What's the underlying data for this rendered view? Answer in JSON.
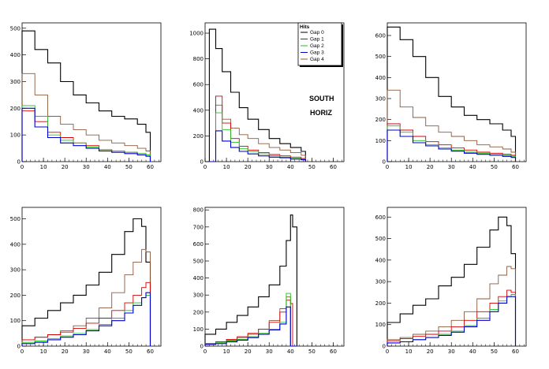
{
  "colors": {
    "Gap 0": "#000000",
    "Gap 1": "#d40000",
    "Gap 2": "#20c020",
    "Gap 3": "#0000cc",
    "Gap 4": "#8b5a3c"
  },
  "legend": {
    "title": "Hits",
    "entries": [
      "Gap 0",
      "Gap 1",
      "Gap 2",
      "Gap 3",
      "Gap 4"
    ]
  },
  "annotations": {
    "line1": "SOUTH",
    "line2": "HORIZ"
  },
  "chart_data": [
    {
      "type": "histogram",
      "xlim": [
        0,
        65
      ],
      "ylim": [
        0,
        520
      ],
      "xticks": [
        0,
        10,
        20,
        30,
        40,
        50,
        60
      ],
      "yticks": [
        0,
        100,
        200,
        300,
        400,
        500
      ],
      "series": [
        {
          "name": "Gap 0",
          "x": [
            0,
            6,
            12,
            18,
            24,
            30,
            36,
            42,
            48,
            54,
            58
          ],
          "y": [
            490,
            420,
            370,
            300,
            250,
            220,
            190,
            170,
            160,
            140,
            110
          ]
        },
        {
          "name": "Gap 4",
          "x": [
            0,
            6,
            12,
            18,
            24,
            30,
            36,
            42,
            48,
            54,
            58
          ],
          "y": [
            330,
            250,
            170,
            140,
            120,
            100,
            80,
            70,
            60,
            50,
            40
          ]
        },
        {
          "name": "Gap 1",
          "x": [
            0,
            6,
            12,
            18,
            24,
            30,
            36,
            42,
            48,
            54,
            58
          ],
          "y": [
            190,
            150,
            110,
            90,
            70,
            60,
            45,
            40,
            35,
            30,
            25
          ]
        },
        {
          "name": "Gap 2",
          "x": [
            0,
            6,
            12,
            18,
            24,
            30,
            36,
            42,
            48,
            54,
            58
          ],
          "y": [
            210,
            170,
            100,
            80,
            70,
            55,
            45,
            40,
            35,
            30,
            25
          ]
        },
        {
          "name": "Gap 3",
          "x": [
            0,
            6,
            12,
            18,
            24,
            30,
            36,
            42,
            48,
            54,
            58
          ],
          "y": [
            200,
            130,
            90,
            70,
            60,
            50,
            40,
            35,
            30,
            25,
            20
          ]
        }
      ]
    },
    {
      "type": "histogram",
      "xlim": [
        0,
        65
      ],
      "ylim": [
        0,
        1080
      ],
      "xticks": [
        0,
        10,
        20,
        30,
        40,
        50,
        60
      ],
      "yticks": [
        0,
        200,
        400,
        600,
        800,
        1000
      ],
      "series": [
        {
          "name": "Gap 0",
          "x": [
            2,
            5,
            8,
            12,
            16,
            20,
            25,
            30,
            35,
            40,
            45
          ],
          "y": [
            1030,
            880,
            700,
            540,
            420,
            330,
            250,
            180,
            140,
            110,
            80
          ]
        },
        {
          "name": "Gap 4",
          "x": [
            2,
            5,
            8,
            12,
            16,
            20,
            25,
            30,
            35,
            40,
            45
          ],
          "y": [
            0,
            440,
            330,
            260,
            210,
            180,
            140,
            110,
            90,
            70,
            50
          ]
        },
        {
          "name": "Gap 1",
          "x": [
            2,
            5,
            8,
            12,
            16,
            20,
            25,
            30,
            35,
            40,
            45
          ],
          "y": [
            0,
            510,
            300,
            180,
            120,
            90,
            70,
            55,
            45,
            35,
            25
          ]
        },
        {
          "name": "Gap 2",
          "x": [
            2,
            5,
            8,
            12,
            16,
            20,
            25,
            30,
            35,
            40,
            45
          ],
          "y": [
            0,
            380,
            250,
            150,
            100,
            80,
            60,
            45,
            35,
            25,
            20
          ]
        },
        {
          "name": "Gap 3",
          "x": [
            2,
            5,
            8,
            12,
            16,
            20,
            25,
            30,
            35,
            40,
            45
          ],
          "y": [
            0,
            240,
            160,
            110,
            80,
            60,
            45,
            35,
            30,
            20,
            15
          ]
        }
      ]
    },
    {
      "type": "histogram",
      "xlim": [
        0,
        65
      ],
      "ylim": [
        0,
        660
      ],
      "xticks": [
        0,
        10,
        20,
        30,
        40,
        50,
        60
      ],
      "yticks": [
        0,
        100,
        200,
        300,
        400,
        500,
        600
      ],
      "series": [
        {
          "name": "Gap 0",
          "x": [
            0,
            6,
            12,
            18,
            24,
            30,
            36,
            42,
            48,
            54,
            58
          ],
          "y": [
            640,
            580,
            500,
            400,
            310,
            260,
            220,
            200,
            180,
            150,
            120
          ]
        },
        {
          "name": "Gap 4",
          "x": [
            0,
            6,
            12,
            18,
            24,
            30,
            36,
            42,
            48,
            54,
            58
          ],
          "y": [
            340,
            260,
            210,
            170,
            140,
            120,
            100,
            80,
            70,
            60,
            45
          ]
        },
        {
          "name": "Gap 1",
          "x": [
            0,
            6,
            12,
            18,
            24,
            30,
            36,
            42,
            48,
            54,
            58
          ],
          "y": [
            180,
            150,
            120,
            95,
            80,
            65,
            55,
            45,
            40,
            35,
            30
          ]
        },
        {
          "name": "Gap 2",
          "x": [
            0,
            6,
            12,
            18,
            24,
            30,
            36,
            42,
            48,
            54,
            58
          ],
          "y": [
            170,
            140,
            100,
            80,
            65,
            55,
            45,
            40,
            35,
            30,
            25
          ]
        },
        {
          "name": "Gap 3",
          "x": [
            0,
            6,
            12,
            18,
            24,
            30,
            36,
            42,
            48,
            54,
            58
          ],
          "y": [
            150,
            120,
            90,
            75,
            60,
            50,
            40,
            35,
            30,
            25,
            20
          ]
        }
      ]
    },
    {
      "type": "histogram",
      "xlim": [
        0,
        65
      ],
      "ylim": [
        0,
        545
      ],
      "xticks": [
        0,
        10,
        20,
        30,
        40,
        50,
        60
      ],
      "yticks": [
        0,
        100,
        200,
        300,
        400,
        500
      ],
      "series": [
        {
          "name": "Gap 0",
          "x": [
            0,
            6,
            12,
            18,
            24,
            30,
            36,
            42,
            48,
            52,
            56,
            58
          ],
          "y": [
            80,
            110,
            140,
            170,
            200,
            240,
            290,
            360,
            450,
            500,
            470,
            330
          ]
        },
        {
          "name": "Gap 4",
          "x": [
            0,
            6,
            12,
            18,
            24,
            30,
            36,
            42,
            48,
            52,
            56,
            58
          ],
          "y": [
            25,
            35,
            45,
            60,
            80,
            110,
            150,
            210,
            280,
            330,
            380,
            370
          ]
        },
        {
          "name": "Gap 1",
          "x": [
            0,
            6,
            12,
            18,
            24,
            30,
            36,
            42,
            48,
            52,
            56,
            58
          ],
          "y": [
            25,
            35,
            45,
            55,
            70,
            90,
            110,
            140,
            170,
            200,
            230,
            250
          ]
        },
        {
          "name": "Gap 2",
          "x": [
            0,
            6,
            12,
            18,
            24,
            30,
            36,
            42,
            48,
            52,
            56,
            58
          ],
          "y": [
            15,
            20,
            30,
            40,
            50,
            65,
            85,
            110,
            140,
            170,
            190,
            200
          ]
        },
        {
          "name": "Gap 3",
          "x": [
            0,
            6,
            12,
            18,
            24,
            30,
            36,
            42,
            48,
            52,
            56,
            58
          ],
          "y": [
            10,
            15,
            25,
            35,
            45,
            60,
            80,
            100,
            130,
            160,
            190,
            210
          ]
        }
      ]
    },
    {
      "type": "histogram",
      "xlim": [
        0,
        65
      ],
      "ylim": [
        0,
        815
      ],
      "xticks": [
        0,
        10,
        20,
        30,
        40,
        50,
        60
      ],
      "yticks": [
        0,
        100,
        200,
        300,
        400,
        500,
        600,
        700,
        800
      ],
      "series": [
        {
          "name": "Gap 0",
          "x": [
            0,
            5,
            10,
            15,
            20,
            25,
            30,
            35,
            38,
            40,
            41
          ],
          "y": [
            70,
            100,
            140,
            180,
            230,
            290,
            360,
            470,
            620,
            770,
            700
          ]
        },
        {
          "name": "Gap 4",
          "x": [
            0,
            5,
            10,
            15,
            20,
            25,
            30,
            35,
            38,
            40,
            41
          ],
          "y": [
            15,
            25,
            35,
            50,
            70,
            100,
            150,
            220,
            290,
            0,
            0
          ]
        },
        {
          "name": "Gap 1",
          "x": [
            0,
            5,
            10,
            15,
            20,
            25,
            30,
            35,
            38,
            40,
            41
          ],
          "y": [
            15,
            25,
            40,
            55,
            75,
            100,
            140,
            200,
            270,
            250,
            0
          ]
        },
        {
          "name": "Gap 2",
          "x": [
            0,
            5,
            10,
            15,
            20,
            25,
            30,
            35,
            38,
            40,
            41
          ],
          "y": [
            10,
            20,
            30,
            40,
            55,
            75,
            100,
            140,
            310,
            0,
            0
          ]
        },
        {
          "name": "Gap 3",
          "x": [
            0,
            5,
            10,
            15,
            20,
            25,
            30,
            35,
            38,
            40,
            41
          ],
          "y": [
            10,
            15,
            25,
            35,
            50,
            70,
            95,
            130,
            230,
            0,
            0
          ]
        }
      ]
    },
    {
      "type": "histogram",
      "xlim": [
        0,
        65
      ],
      "ylim": [
        0,
        645
      ],
      "xticks": [
        0,
        10,
        20,
        30,
        40,
        50,
        60
      ],
      "yticks": [
        0,
        100,
        200,
        300,
        400,
        500,
        600
      ],
      "series": [
        {
          "name": "Gap 0",
          "x": [
            0,
            6,
            12,
            18,
            24,
            30,
            36,
            42,
            48,
            52,
            56,
            58
          ],
          "y": [
            110,
            150,
            190,
            220,
            280,
            320,
            380,
            460,
            540,
            600,
            560,
            430
          ]
        },
        {
          "name": "Gap 4",
          "x": [
            0,
            6,
            12,
            18,
            24,
            30,
            36,
            42,
            48,
            52,
            56,
            58
          ],
          "y": [
            30,
            40,
            55,
            70,
            90,
            120,
            160,
            220,
            290,
            330,
            370,
            360
          ]
        },
        {
          "name": "Gap 1",
          "x": [
            0,
            6,
            12,
            18,
            24,
            30,
            36,
            42,
            48,
            52,
            56,
            58
          ],
          "y": [
            25,
            35,
            45,
            55,
            70,
            90,
            120,
            160,
            200,
            230,
            260,
            250
          ]
        },
        {
          "name": "Gap 2",
          "x": [
            0,
            6,
            12,
            18,
            24,
            30,
            36,
            42,
            48,
            52,
            56,
            58
          ],
          "y": [
            15,
            20,
            30,
            40,
            55,
            70,
            95,
            130,
            170,
            210,
            230,
            240
          ]
        },
        {
          "name": "Gap 3",
          "x": [
            0,
            6,
            12,
            18,
            24,
            30,
            36,
            42,
            48,
            52,
            56,
            58
          ],
          "y": [
            15,
            20,
            30,
            40,
            50,
            65,
            90,
            120,
            160,
            200,
            230,
            230
          ]
        }
      ]
    }
  ]
}
